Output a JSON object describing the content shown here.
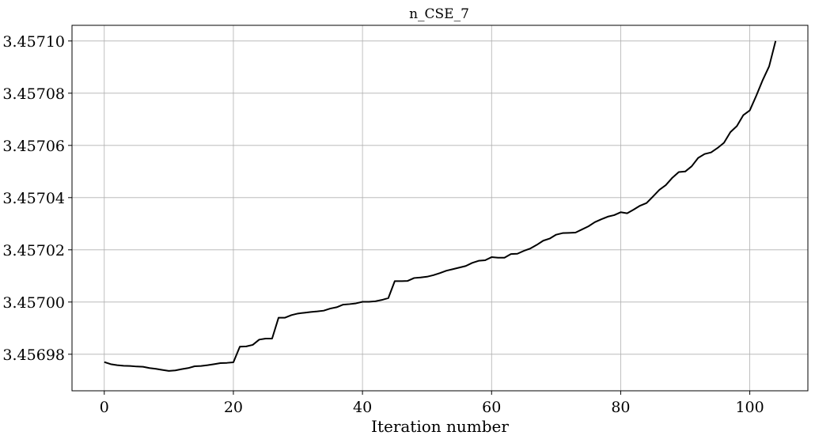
{
  "chart_data": {
    "type": "line",
    "title": "n_CSE_7",
    "xlabel": "Iteration number",
    "ylabel": "",
    "xlim": [
      -5,
      109
    ],
    "ylim": [
      3.456966,
      3.457106
    ],
    "x_ticks": [
      0,
      20,
      40,
      60,
      80,
      100
    ],
    "x_tick_labels": [
      "0",
      "20",
      "40",
      "60",
      "80",
      "100"
    ],
    "y_ticks": [
      3.45698,
      3.457,
      3.45702,
      3.45704,
      3.45706,
      3.45708,
      3.4571
    ],
    "y_tick_labels": [
      "3.45698",
      "3.45700",
      "3.45702",
      "3.45704",
      "3.45706",
      "3.45708",
      "3.45710"
    ],
    "grid": true,
    "colors": {
      "line": "#000000",
      "grid": "#b0b0b0"
    },
    "series": [
      {
        "x": [
          0,
          1,
          2,
          3,
          4,
          5,
          6,
          7,
          8,
          9,
          10,
          11,
          12,
          13,
          14,
          15,
          16,
          17,
          18,
          19,
          20,
          21,
          22,
          23,
          24,
          25,
          26,
          27,
          28,
          29,
          30,
          31,
          32,
          33,
          34,
          35,
          36,
          37,
          38,
          39,
          40,
          41,
          42,
          43,
          44,
          45,
          46,
          47,
          48,
          49,
          50,
          51,
          52,
          53,
          54,
          55,
          56,
          57,
          58,
          59,
          60,
          61,
          62,
          63,
          64,
          65,
          66,
          67,
          68,
          69,
          70,
          71,
          72,
          73,
          74,
          75,
          76,
          77,
          78,
          79,
          80,
          81,
          82,
          83,
          84,
          85,
          86,
          87,
          88,
          89,
          90,
          91,
          92,
          93,
          94,
          95,
          96,
          97,
          98,
          99,
          100,
          101,
          102,
          103,
          104
        ],
        "y": [
          3.456977,
          3.4569762,
          3.4569758,
          3.4569756,
          3.4569755,
          3.4569753,
          3.4569752,
          3.4569747,
          3.4569744,
          3.456974,
          3.4569736,
          3.4569738,
          3.4569743,
          3.4569747,
          3.4569754,
          3.4569755,
          3.4569758,
          3.4569762,
          3.4569766,
          3.4569767,
          3.4569769,
          3.4569829,
          3.456983,
          3.4569836,
          3.4569856,
          3.456986,
          3.456986,
          3.456994,
          3.456994,
          3.456995,
          3.4569956,
          3.4569959,
          3.4569962,
          3.4569964,
          3.4569967,
          3.4569975,
          3.456998,
          3.456999,
          3.4569992,
          3.4569995,
          3.4570001,
          3.4570001,
          3.4570003,
          3.4570008,
          3.4570015,
          3.457008,
          3.457008,
          3.4570081,
          3.4570092,
          3.4570094,
          3.4570097,
          3.4570103,
          3.4570111,
          3.457012,
          3.4570126,
          3.4570132,
          3.4570138,
          3.457015,
          3.4570158,
          3.457016,
          3.4570172,
          3.457017,
          3.457017,
          3.4570184,
          3.4570185,
          3.4570196,
          3.4570205,
          3.4570219,
          3.4570235,
          3.4570243,
          3.4570258,
          3.4570264,
          3.4570265,
          3.4570266,
          3.4570278,
          3.457029,
          3.4570306,
          3.4570317,
          3.4570327,
          3.4570333,
          3.4570344,
          3.457034,
          3.4570354,
          3.4570369,
          3.4570379,
          3.4570404,
          3.457043,
          3.4570448,
          3.4570476,
          3.4570498,
          3.45705,
          3.457052,
          3.4570552,
          3.4570567,
          3.4570573,
          3.457059,
          3.457061,
          3.4570651,
          3.4570674,
          3.4570716,
          3.4570734,
          3.457079,
          3.457085,
          3.4570903,
          3.4571
        ]
      }
    ]
  }
}
